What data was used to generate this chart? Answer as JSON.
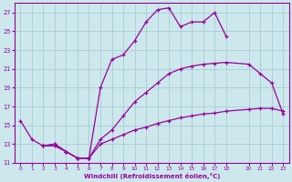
{
  "xlabel": "Windchill (Refroidissement éolien,°C)",
  "bg_color": "#cce8ec",
  "grid_color": "#aaccd4",
  "line_color": "#990099",
  "xlim": [
    -0.5,
    23.5
  ],
  "ylim": [
    11,
    28
  ],
  "xticks": [
    0,
    1,
    2,
    3,
    4,
    5,
    6,
    7,
    8,
    9,
    10,
    11,
    12,
    13,
    14,
    15,
    16,
    17,
    18,
    20,
    21,
    22,
    23
  ],
  "yticks": [
    11,
    13,
    15,
    17,
    19,
    21,
    23,
    25,
    27
  ],
  "curve1_x": [
    0,
    1,
    2,
    3,
    4,
    5,
    6,
    7,
    8,
    9,
    10,
    11,
    12,
    13,
    14,
    15,
    16,
    17,
    18
  ],
  "curve1_y": [
    15.5,
    13.5,
    12.8,
    12.8,
    12.2,
    11.5,
    11.5,
    19.0,
    22.0,
    22.5,
    24.0,
    26.0,
    27.3,
    27.5,
    25.5,
    26.0,
    26.0,
    27.0,
    24.5
  ],
  "curve2_x": [
    2,
    3,
    4,
    5,
    6,
    7,
    8,
    9,
    10,
    11,
    12,
    13,
    14,
    15,
    16,
    17,
    18,
    20,
    21,
    22,
    23
  ],
  "curve2_y": [
    12.8,
    13.0,
    12.2,
    11.5,
    11.5,
    13.5,
    14.5,
    16.0,
    17.5,
    18.5,
    19.5,
    20.5,
    21.0,
    21.3,
    21.5,
    21.6,
    21.7,
    21.5,
    20.5,
    19.5,
    16.2
  ],
  "curve3_x": [
    2,
    3,
    4,
    5,
    6,
    7,
    8,
    9,
    10,
    11,
    12,
    13,
    14,
    15,
    16,
    17,
    18,
    20,
    21,
    22,
    23
  ],
  "curve3_y": [
    12.8,
    13.0,
    12.2,
    11.5,
    11.5,
    13.0,
    13.5,
    14.0,
    14.5,
    14.8,
    15.2,
    15.5,
    15.8,
    16.0,
    16.2,
    16.3,
    16.5,
    16.7,
    16.8,
    16.8,
    16.5
  ]
}
